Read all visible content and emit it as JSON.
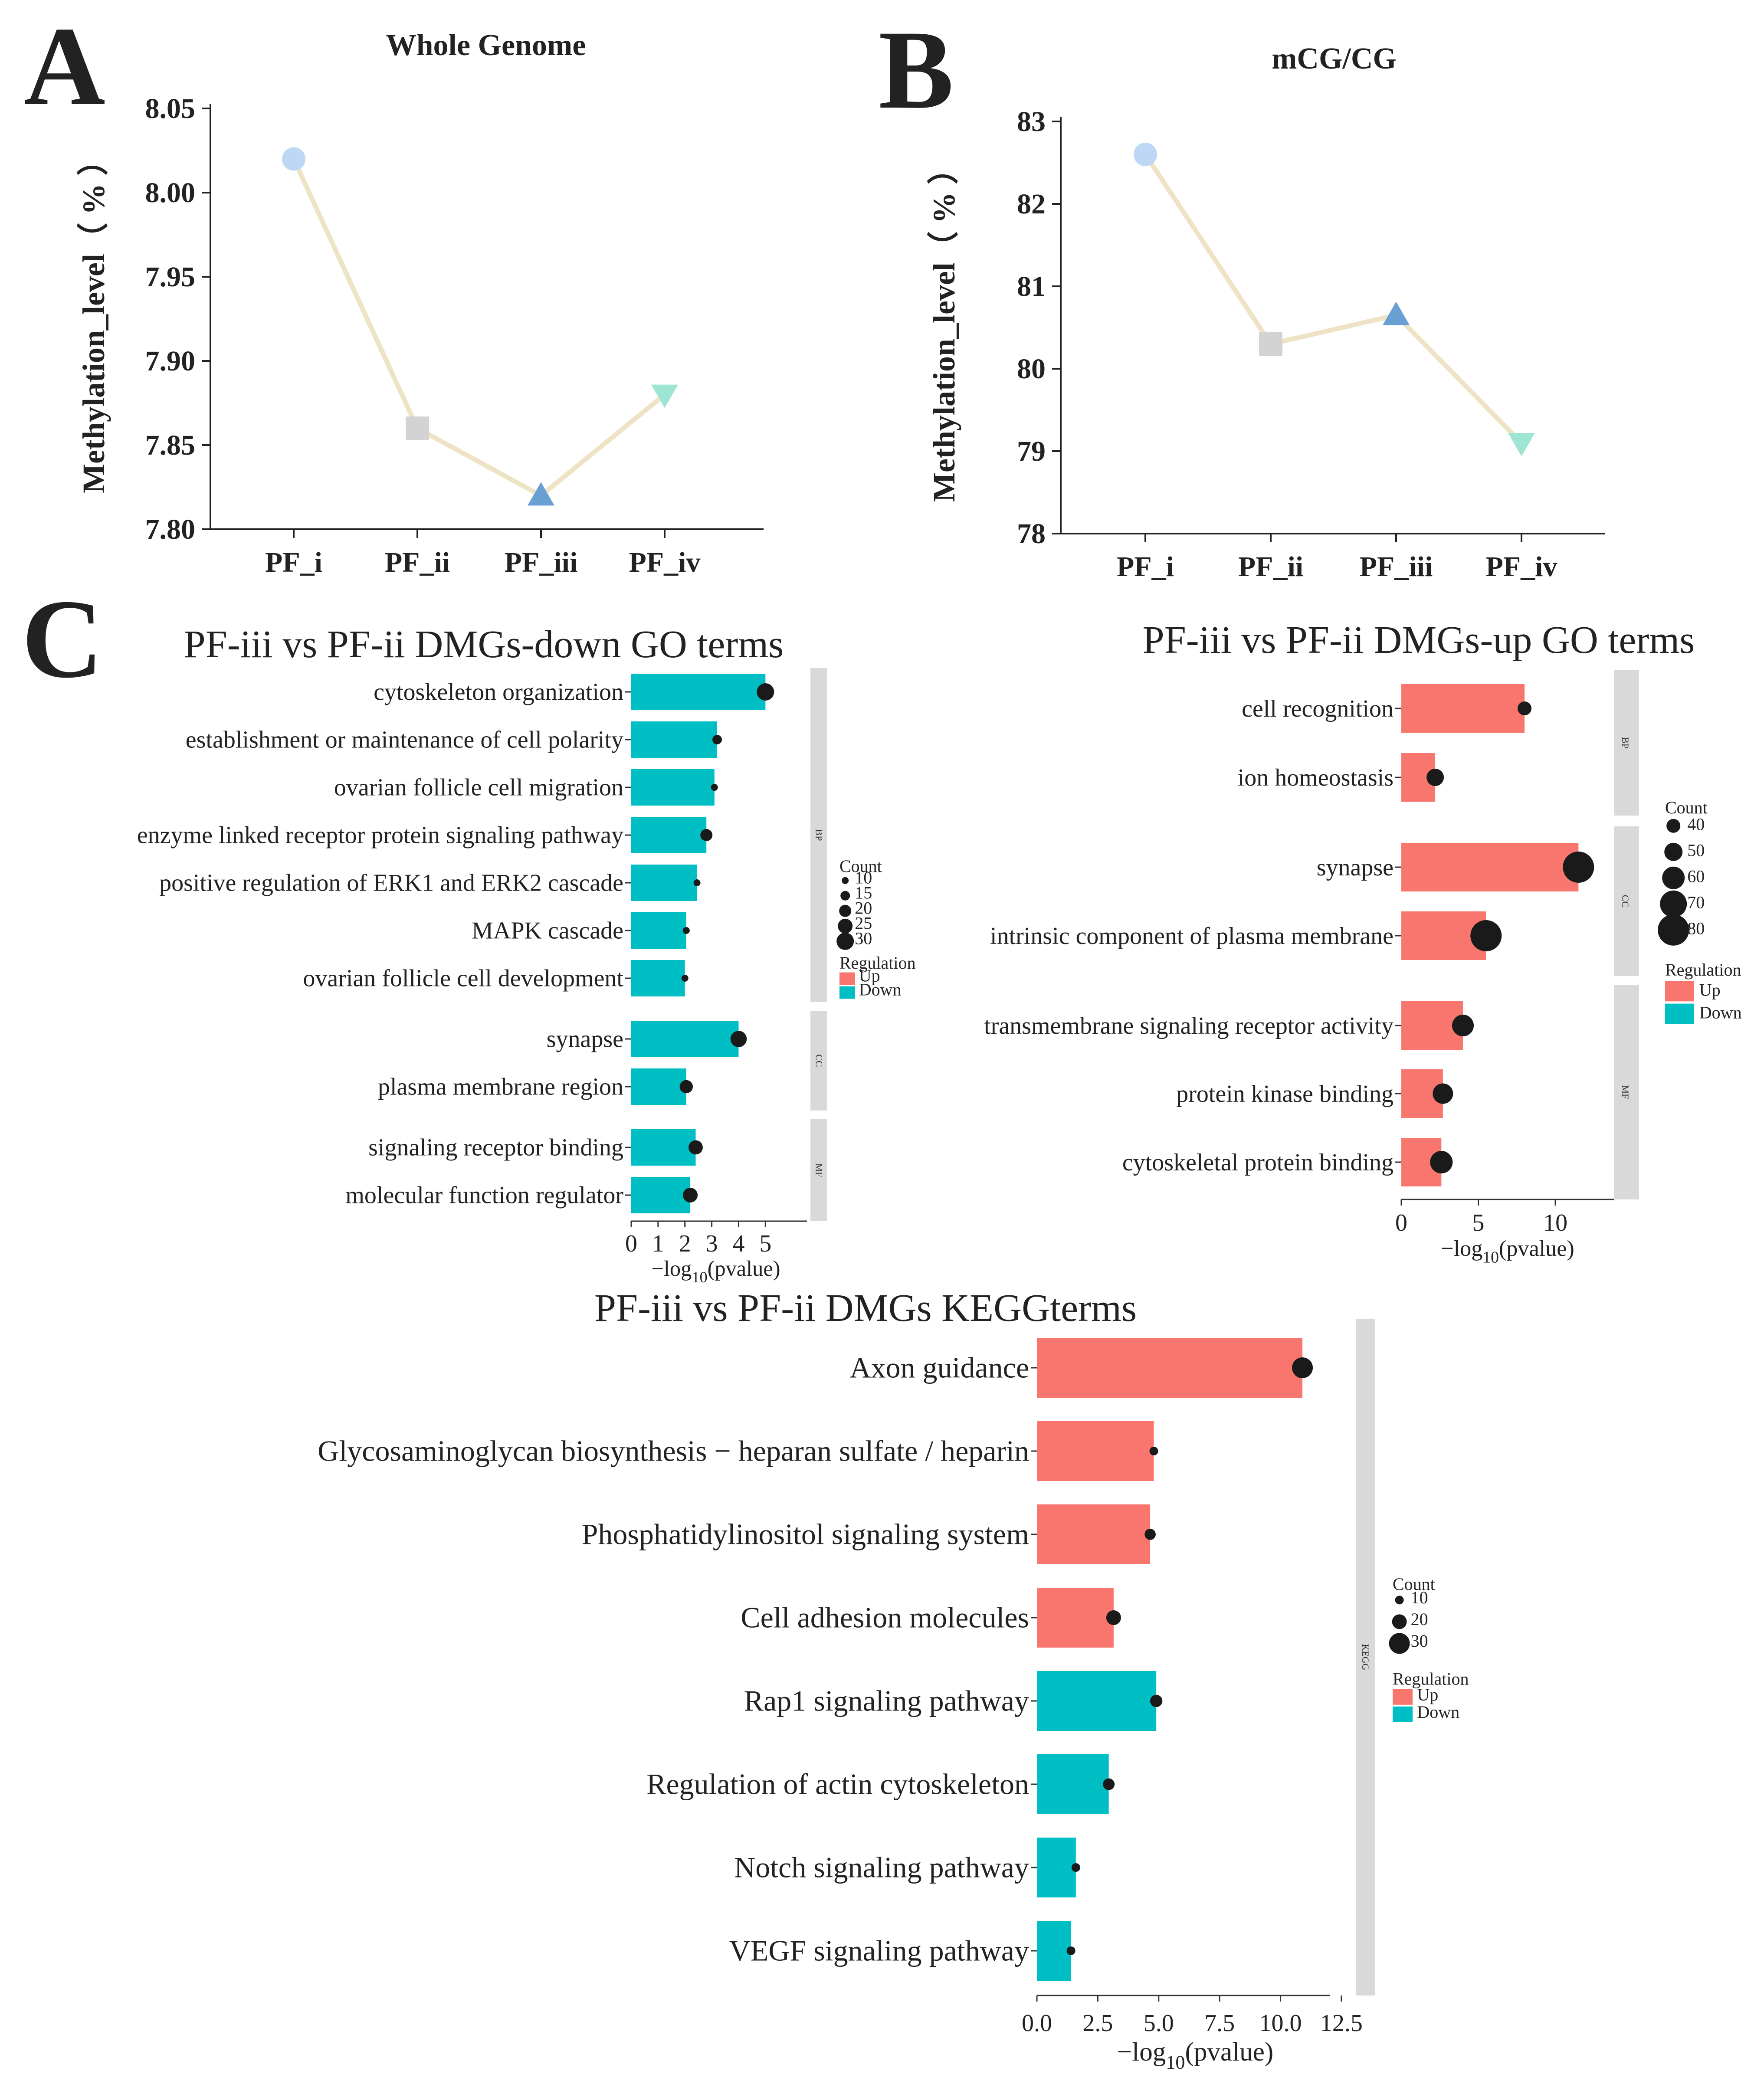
{
  "panels": {
    "A": "A",
    "B": "B",
    "C": "C"
  },
  "colors": {
    "up": "#F8766D",
    "down": "#00BFC4",
    "line": "#EFE3C6",
    "dot": "#1a1a1a",
    "strip": "#D9D9D9",
    "marker_i": "#BDD7F5",
    "marker_ii": "#D3D3D3",
    "marker_iii": "#6A9FD3",
    "marker_iv": "#9EE6D3"
  },
  "chart_data": [
    {
      "id": "A",
      "type": "line",
      "title": "Whole Genome",
      "xlabel": "",
      "ylabel": "Methylation_level（ % ）",
      "categories": [
        "PF_i",
        "PF_ii",
        "PF_iii",
        "PF_iv"
      ],
      "values": [
        8.02,
        7.86,
        7.82,
        7.88
      ],
      "markers": [
        "circle",
        "square",
        "triangle-up",
        "triangle-down"
      ],
      "ylim": [
        7.8,
        8.05
      ],
      "yticks": [
        7.8,
        7.85,
        7.9,
        7.95,
        8.0,
        8.05
      ],
      "ytick_labels": [
        "7.80",
        "7.85",
        "7.90",
        "7.95",
        "8.00",
        "8.05"
      ]
    },
    {
      "id": "B",
      "type": "line",
      "title": "mCG/CG",
      "xlabel": "",
      "ylabel": "Methylation_level（ % ）",
      "categories": [
        "PF_i",
        "PF_ii",
        "PF_iii",
        "PF_iv"
      ],
      "values": [
        82.6,
        80.3,
        80.65,
        79.1
      ],
      "markers": [
        "circle",
        "square",
        "triangle-up",
        "triangle-down"
      ],
      "ylim": [
        78,
        83
      ],
      "yticks": [
        78,
        79,
        80,
        81,
        82,
        83
      ],
      "ytick_labels": [
        "78",
        "79",
        "80",
        "81",
        "82",
        "83"
      ]
    },
    {
      "id": "C-down",
      "type": "bar",
      "title": "PF-iii vs PF-ii DMGs-down  GO terms",
      "xlabel": "−log10(pvalue)",
      "xlim": [
        0,
        5.9
      ],
      "xticks": [
        0,
        1,
        2,
        3,
        4,
        5
      ],
      "xtick_labels": [
        "0",
        "1",
        "2",
        "3",
        "4",
        "5"
      ],
      "facets": [
        {
          "label": "BP",
          "terms": [
            {
              "term": "cytoskeleton organization",
              "value": 5.0,
              "count": 30,
              "regulation": "Down"
            },
            {
              "term": "establishment or maintenance of cell polarity",
              "value": 3.2,
              "count": 15,
              "regulation": "Down"
            },
            {
              "term": "ovarian follicle cell migration",
              "value": 3.1,
              "count": 8,
              "regulation": "Down"
            },
            {
              "term": "enzyme linked receptor protein signaling pathway",
              "value": 2.8,
              "count": 20,
              "regulation": "Down"
            },
            {
              "term": "positive regulation of ERK1 and ERK2 cascade",
              "value": 2.45,
              "count": 5,
              "regulation": "Down"
            },
            {
              "term": "MAPK cascade",
              "value": 2.05,
              "count": 10,
              "regulation": "Down"
            },
            {
              "term": "ovarian follicle cell development",
              "value": 2.0,
              "count": 9,
              "regulation": "Down"
            }
          ]
        },
        {
          "label": "CC",
          "terms": [
            {
              "term": "synapse",
              "value": 4.0,
              "count": 28,
              "regulation": "Down"
            },
            {
              "term": "plasma membrane region",
              "value": 2.05,
              "count": 22,
              "regulation": "Down"
            }
          ]
        },
        {
          "label": "MF",
          "terms": [
            {
              "term": "signaling receptor binding",
              "value": 2.4,
              "count": 24,
              "regulation": "Down"
            },
            {
              "term": "molecular function regulator",
              "value": 2.2,
              "count": 25,
              "regulation": "Down"
            }
          ]
        }
      ],
      "legend": {
        "count_title": "Count",
        "count_items": [
          10,
          15,
          20,
          25,
          30
        ],
        "regulation_title": "Regulation",
        "regulation_items": [
          "Up",
          "Down"
        ]
      }
    },
    {
      "id": "C-up",
      "type": "bar",
      "title": "PF-iii vs PF-ii   DMGs-up GO terms",
      "xlabel": "−log10(pvalue)",
      "xlim": [
        0,
        13.8
      ],
      "xticks": [
        0,
        5,
        10
      ],
      "xtick_labels": [
        "0",
        "5",
        "10"
      ],
      "facets": [
        {
          "label": "BP",
          "terms": [
            {
              "term": "cell recognition",
              "value": 8.0,
              "count": 35,
              "regulation": "Up"
            },
            {
              "term": "ion homeostasis",
              "value": 2.2,
              "count": 48,
              "regulation": "Up"
            }
          ]
        },
        {
          "label": "CC",
          "terms": [
            {
              "term": "synapse",
              "value": 11.5,
              "count": 85,
              "regulation": "Up"
            },
            {
              "term": "intrinsic component of plasma membrane",
              "value": 5.5,
              "count": 85,
              "regulation": "Up"
            }
          ]
        },
        {
          "label": "MF",
          "terms": [
            {
              "term": "transmembrane signaling receptor activity",
              "value": 4.0,
              "count": 58,
              "regulation": "Up"
            },
            {
              "term": "protein kinase binding",
              "value": 2.7,
              "count": 55,
              "regulation": "Up"
            },
            {
              "term": "cytoskeletal protein binding",
              "value": 2.6,
              "count": 60,
              "regulation": "Up"
            }
          ]
        }
      ],
      "legend": {
        "count_title": "Count",
        "count_items": [
          40,
          50,
          60,
          70,
          80
        ],
        "regulation_title": "Regulation",
        "regulation_items": [
          "Up",
          "Down"
        ]
      }
    },
    {
      "id": "C-kegg",
      "type": "bar",
      "title": "PF-iii vs PF-ii  DMGs KEGGterms",
      "xlabel": "−log10(pvalue)",
      "xlim": [
        0,
        13.0
      ],
      "xticks": [
        0,
        2.5,
        5,
        7.5,
        10,
        12.5
      ],
      "xtick_labels": [
        "0.0",
        "2.5",
        "5.0",
        "7.5",
        "10.0",
        "12.5"
      ],
      "facets": [
        {
          "label": "KEGG",
          "terms": [
            {
              "term": "Axon guidance",
              "value": 10.9,
              "count": 33,
              "regulation": "Up"
            },
            {
              "term": "Glycosaminoglycan biosynthesis − heparan sulfate / heparin",
              "value": 4.8,
              "count": 10,
              "regulation": "Up"
            },
            {
              "term": "Phosphatidylinositol signaling system",
              "value": 4.65,
              "count": 14,
              "regulation": "Up"
            },
            {
              "term": "Cell adhesion molecules",
              "value": 3.15,
              "count": 20,
              "regulation": "Up"
            },
            {
              "term": "Rap1 signaling pathway",
              "value": 4.9,
              "count": 16,
              "regulation": "Down"
            },
            {
              "term": "Regulation of actin cytoskeleton",
              "value": 2.95,
              "count": 15,
              "regulation": "Down"
            },
            {
              "term": "Notch signaling pathway",
              "value": 1.6,
              "count": 5,
              "regulation": "Down"
            },
            {
              "term": "VEGF signaling pathway",
              "value": 1.4,
              "count": 4,
              "regulation": "Down"
            }
          ]
        }
      ],
      "legend": {
        "count_title": "Count",
        "count_items": [
          10,
          20,
          30
        ],
        "regulation_title": "Regulation",
        "regulation_items": [
          "Up",
          "Down"
        ]
      }
    }
  ]
}
